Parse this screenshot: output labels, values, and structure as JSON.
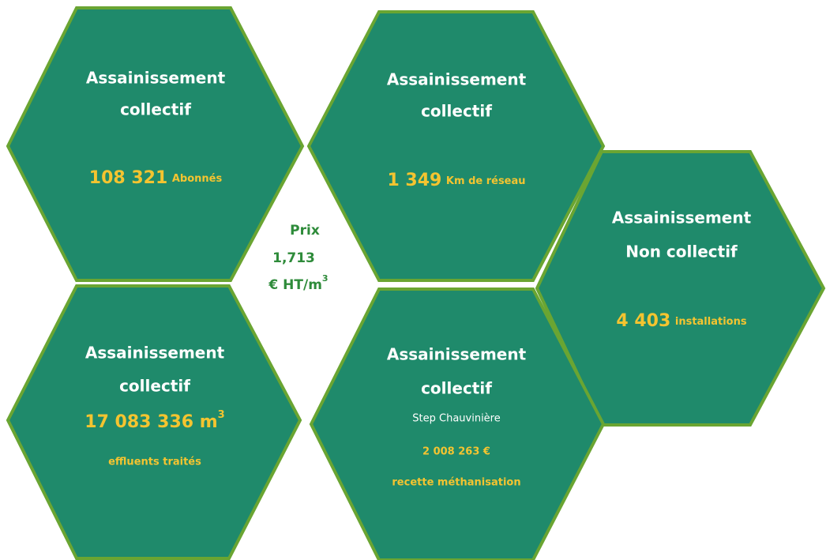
{
  "hexagons": [
    {
      "title": [
        "Assainissement",
        "collectif"
      ],
      "value": "108 321",
      "unit": "Abonnés"
    },
    {
      "title": [
        "Assainissement",
        "collectif"
      ],
      "value": "1 349",
      "unit": "Km de réseau"
    },
    {
      "title": [
        "Assainissement",
        "Non collectif"
      ],
      "value": "4 403",
      "unit": "installations"
    },
    {
      "title": [
        "Assainissement",
        "collectif"
      ],
      "value": "17 083 336 m",
      "value_sup": "3",
      "note": "effluents traités"
    },
    {
      "title": [
        "Assainissement",
        "collectif"
      ],
      "subtitle": "Step Chauvinière",
      "value": "2 008 263 €",
      "note": "recette méthanisation"
    }
  ],
  "center": {
    "label": "Prix",
    "value": "1,713",
    "unit": "€ HT/m",
    "unit_sup": "3"
  }
}
